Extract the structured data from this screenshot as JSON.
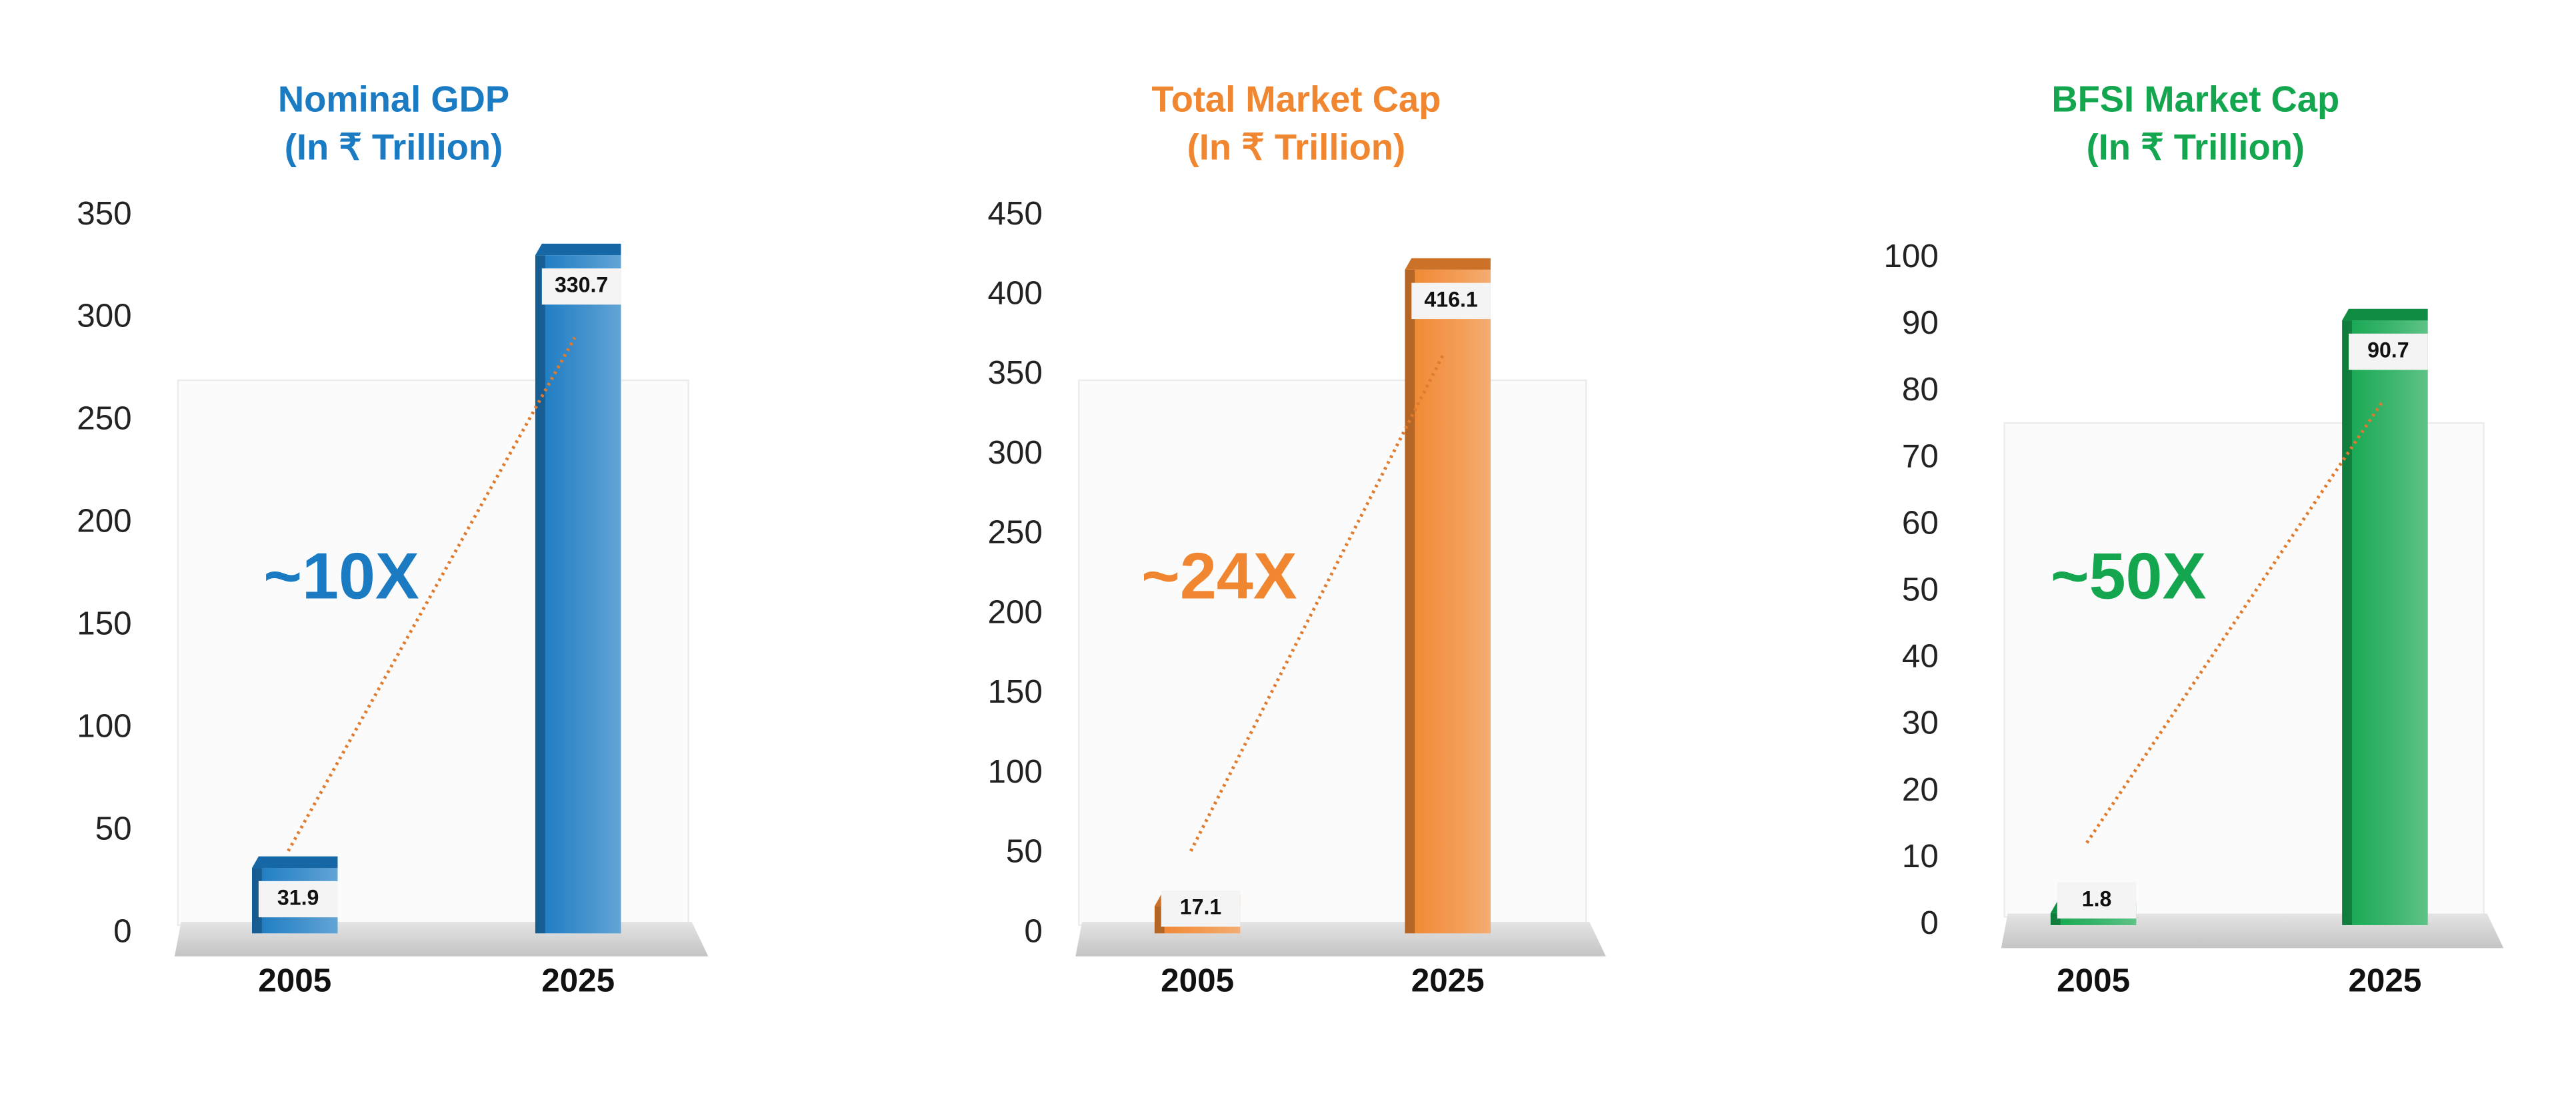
{
  "chart_data": [
    {
      "type": "bar",
      "title": "Nominal GDP",
      "subtitle": "(In ₹ Trillion)",
      "categories": [
        "2005",
        "2025"
      ],
      "values": [
        31.9,
        330.7
      ],
      "color": "#1a7ac2",
      "ylim": [
        0,
        350
      ],
      "yticks": [
        0,
        50,
        100,
        150,
        200,
        250,
        300,
        350
      ],
      "annotation": "~10X"
    },
    {
      "type": "bar",
      "title": "Total Market Cap",
      "subtitle": "(In ₹ Trillion)",
      "categories": [
        "2005",
        "2025"
      ],
      "values": [
        17.1,
        416.1
      ],
      "color": "#f0862f",
      "ylim": [
        0,
        450
      ],
      "yticks": [
        0,
        50,
        100,
        150,
        200,
        250,
        300,
        350,
        400,
        450
      ],
      "annotation": "~24X"
    },
    {
      "type": "bar",
      "title": "BFSI Market Cap",
      "subtitle": "(In ₹ Trillion)",
      "categories": [
        "2005",
        "2025"
      ],
      "values": [
        1.8,
        90.7
      ],
      "color": "#13a64f",
      "ylim": [
        0,
        100
      ],
      "yticks": [
        0,
        10,
        20,
        30,
        40,
        50,
        60,
        70,
        80,
        90,
        100
      ],
      "annotation": "~50X"
    }
  ]
}
